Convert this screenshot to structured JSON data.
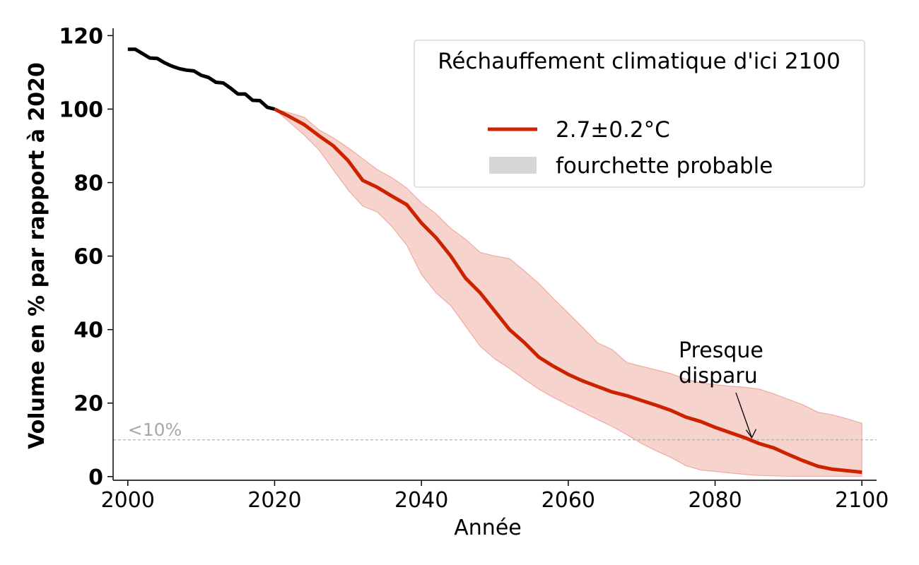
{
  "chart_data": {
    "type": "line",
    "xlabel": "Année",
    "ylabel": "Volume en % par rapport à 2020",
    "xlim": [
      1998,
      2102
    ],
    "ylim": [
      -1,
      122
    ],
    "xticks": [
      2000,
      2020,
      2040,
      2060,
      2080,
      2100
    ],
    "yticks": [
      0,
      20,
      40,
      60,
      80,
      100,
      120
    ],
    "grid": false,
    "legend": {
      "title": "Réchauffement climatique d'ici 2100",
      "placement": "top-right",
      "entries": [
        {
          "label": "2.7±0.2°C",
          "kind": "line",
          "color": "#cc2200"
        },
        {
          "label": "fourchette probable",
          "kind": "patch",
          "color": "#d6d6d6"
        }
      ]
    },
    "threshold": {
      "y": 10,
      "label": "<10%",
      "color": "#b0b0b0"
    },
    "annotation": {
      "lines": [
        "Presque",
        "disparu"
      ],
      "x": 2085,
      "y": 10
    },
    "series": [
      {
        "role": "historical",
        "color": "#000000",
        "x": [
          2000,
          2001,
          2002,
          2003,
          2004,
          2005,
          2006,
          2007,
          2008,
          2009,
          2010,
          2011,
          2012,
          2013,
          2014,
          2015,
          2016,
          2017,
          2018,
          2019,
          2020
        ],
        "y": [
          116.3,
          116.3,
          115.1,
          113.9,
          113.8,
          112.6,
          111.7,
          111.0,
          110.6,
          110.4,
          109.2,
          108.6,
          107.3,
          107.1,
          105.7,
          104.1,
          104.1,
          102.4,
          102.3,
          100.5,
          100.0
        ]
      },
      {
        "role": "projection",
        "name": "2.7±0.2°C",
        "color": "#cc2200",
        "x": [
          2020,
          2022,
          2024,
          2026,
          2028,
          2030,
          2032,
          2034,
          2036,
          2038,
          2040,
          2042,
          2044,
          2046,
          2048,
          2050,
          2052,
          2054,
          2056,
          2058,
          2060,
          2062,
          2064,
          2066,
          2068,
          2070,
          2072,
          2074,
          2076,
          2078,
          2080,
          2082,
          2084,
          2086,
          2088,
          2090,
          2092,
          2094,
          2096,
          2098,
          2100
        ],
        "y": [
          100.0,
          98.0,
          95.8,
          92.8,
          90.0,
          86.0,
          80.6,
          78.7,
          76.3,
          74.0,
          69.0,
          65.0,
          60.0,
          54.0,
          50.0,
          45.0,
          40.0,
          36.5,
          32.5,
          30.0,
          27.8,
          26.0,
          24.5,
          23.0,
          22.0,
          20.7,
          19.4,
          18.0,
          16.2,
          15.0,
          13.4,
          12.0,
          10.6,
          9.0,
          7.8,
          6.0,
          4.3,
          2.8,
          2.0,
          1.6,
          1.2
        ]
      }
    ],
    "band": {
      "name": "fourchette probable",
      "color": "#f5c8c2",
      "x": [
        2020,
        2022,
        2024,
        2026,
        2028,
        2030,
        2032,
        2034,
        2036,
        2038,
        2040,
        2042,
        2044,
        2046,
        2048,
        2050,
        2052,
        2054,
        2056,
        2058,
        2060,
        2062,
        2064,
        2066,
        2068,
        2070,
        2072,
        2074,
        2076,
        2078,
        2080,
        2082,
        2084,
        2086,
        2088,
        2090,
        2092,
        2094,
        2096,
        2098,
        2100
      ],
      "upper": [
        100.0,
        99.0,
        97.8,
        94.4,
        92.2,
        89.5,
        86.5,
        83.5,
        81.3,
        78.5,
        74.5,
        71.5,
        67.5,
        64.6,
        61.0,
        60.0,
        59.3,
        56.0,
        52.5,
        48.4,
        44.5,
        40.5,
        36.4,
        34.5,
        31.0,
        30.0,
        29.0,
        28.0,
        26.5,
        25.5,
        25.0,
        24.6,
        24.3,
        23.8,
        22.5,
        21.0,
        19.5,
        17.5,
        16.8,
        15.7,
        14.5
      ],
      "lower": [
        100.0,
        96.5,
        93.0,
        89.0,
        83.5,
        78.0,
        73.6,
        72.0,
        68.0,
        63.0,
        55.0,
        50.0,
        46.5,
        41.0,
        35.5,
        32.0,
        29.4,
        26.5,
        23.8,
        21.5,
        19.5,
        17.5,
        15.5,
        13.6,
        11.4,
        9.0,
        7.0,
        5.2,
        3.0,
        1.8,
        1.4,
        1.0,
        0.6,
        0.3,
        0.2,
        0.1,
        0.1,
        0.1,
        0.1,
        0.1,
        0.1
      ]
    }
  }
}
